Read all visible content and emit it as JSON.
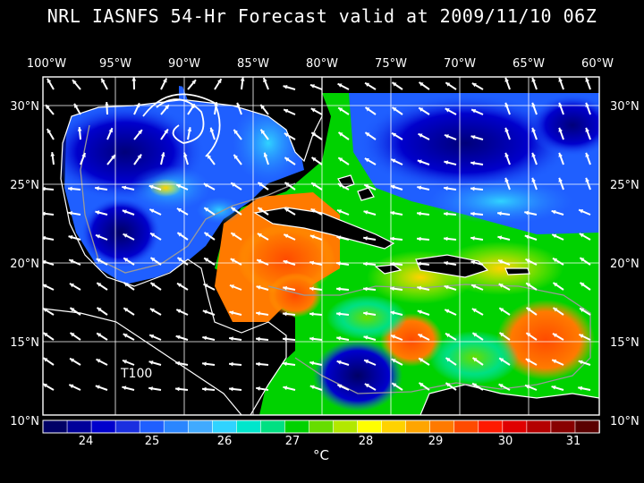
{
  "title": "NRL IASNFS  54-Hr Forecast valid at 2009/11/10 06Z",
  "lon_ticks": [
    "100°W",
    "95°W",
    "90°W",
    "85°W",
    "80°W",
    "75°W",
    "70°W",
    "65°W",
    "60°W"
  ],
  "lat_ticks": [
    "30°N",
    "25°N",
    "20°N",
    "15°N",
    "10°N"
  ],
  "map_label": "T100",
  "colorbar": {
    "ticks": [
      "24",
      "25",
      "26",
      "27",
      "28",
      "29",
      "30",
      "31"
    ],
    "unit": "°C",
    "colors": [
      "#000066",
      "#00009a",
      "#0000cc",
      "#1a2fe0",
      "#1f5fff",
      "#2b86ff",
      "#41aaff",
      "#30d3ff",
      "#00e6cc",
      "#00e082",
      "#00d200",
      "#66dd00",
      "#b2e800",
      "#ffff00",
      "#ffd200",
      "#ffa500",
      "#ff7a00",
      "#ff4b00",
      "#ff1a00",
      "#e00000",
      "#b40000",
      "#880000",
      "#5a0000"
    ]
  },
  "colors": {
    "background": "#000000",
    "land": "#000000",
    "coast": "#ffffff",
    "grid": "#ffffff"
  }
}
